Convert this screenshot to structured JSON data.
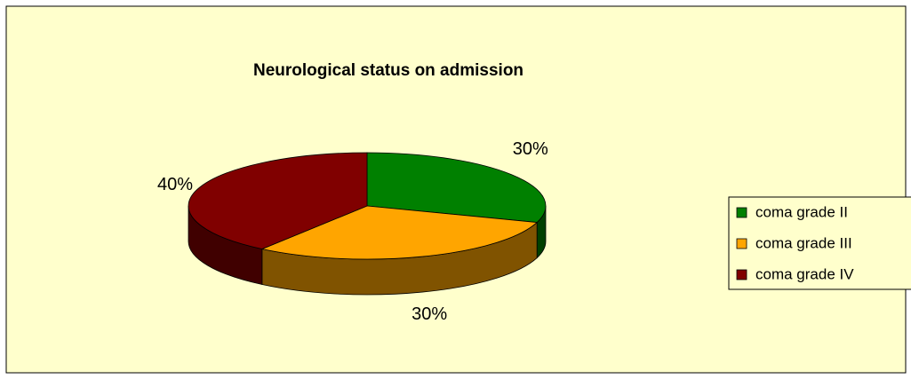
{
  "chart_data": {
    "type": "pie",
    "title": "Neurological status on admission",
    "categories": [
      "coma grade II",
      "coma grade III",
      "coma grade IV"
    ],
    "values": [
      30,
      30,
      40
    ],
    "value_labels": [
      "30%",
      "30%",
      "40%"
    ],
    "colors": [
      "#008000",
      "#ffa500",
      "#800000"
    ],
    "legend": "right"
  }
}
